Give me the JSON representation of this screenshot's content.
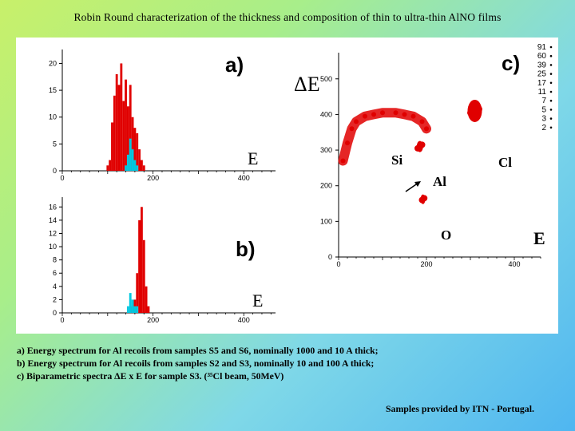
{
  "title": "Robin Round characterization of the thickness and composition of thin to ultra-thin AlNO films",
  "panels": {
    "a": {
      "label": "a)",
      "xaxis_label": "E",
      "yticks": [
        "0",
        "5",
        "10",
        "15",
        "20"
      ],
      "xticks": [
        "0",
        "200",
        "400"
      ]
    },
    "b": {
      "label": "b)",
      "xaxis_label": "E",
      "yticks": [
        "0",
        "2",
        "4",
        "6",
        "8",
        "10",
        "12",
        "14",
        "16"
      ],
      "xticks": [
        "0",
        "200",
        "400"
      ]
    },
    "c": {
      "label": "c)",
      "xaxis_label": "E",
      "yaxis_label": "ΔE",
      "yticks": [
        "0",
        "100",
        "200",
        "300",
        "400",
        "500"
      ],
      "xticks": [
        "0",
        "200",
        "400"
      ],
      "elements": [
        "Si",
        "Al",
        "Cl",
        "O"
      ],
      "scale": [
        "91",
        "60",
        "39",
        "25",
        "17",
        "11",
        "7",
        "5",
        "3",
        "2"
      ]
    }
  },
  "chart_data": [
    {
      "type": "bar",
      "panel": "a",
      "xlabel": "E",
      "ylabel": "",
      "xlim": [
        0,
        470
      ],
      "ylim": [
        0,
        22
      ],
      "series": [
        {
          "color": "#e00000",
          "x": [
            100,
            105,
            110,
            115,
            120,
            125,
            130,
            135,
            140,
            145,
            150,
            155,
            160,
            165,
            170,
            175,
            180
          ],
          "values": [
            1,
            2,
            9,
            14,
            18,
            16,
            20,
            13,
            17,
            12,
            16,
            10,
            8,
            7,
            4,
            2,
            1
          ]
        },
        {
          "color": "#00c8e0",
          "x": [
            140,
            145,
            150,
            155,
            160,
            165
          ],
          "values": [
            1,
            3,
            6,
            4,
            2,
            1
          ]
        }
      ]
    },
    {
      "type": "bar",
      "panel": "b",
      "xlabel": "E",
      "ylabel": "",
      "xlim": [
        0,
        470
      ],
      "ylim": [
        0,
        17
      ],
      "series": [
        {
          "color": "#e00000",
          "x": [
            155,
            160,
            165,
            170,
            175,
            180,
            185,
            190
          ],
          "values": [
            1,
            2,
            6,
            14,
            16,
            11,
            4,
            1
          ]
        },
        {
          "color": "#00c8e0",
          "x": [
            145,
            150,
            155,
            160,
            165
          ],
          "values": [
            1,
            3,
            2,
            1,
            1
          ]
        }
      ]
    },
    {
      "type": "scatter",
      "panel": "c",
      "xlabel": "E",
      "ylabel": "ΔE",
      "xlim": [
        0,
        460
      ],
      "ylim": [
        0,
        560
      ],
      "series": [
        {
          "name": "Si",
          "color": "#e00000",
          "x": [
            10,
            20,
            30,
            40,
            60,
            80,
            100,
            130,
            150,
            170,
            190,
            200
          ],
          "y": [
            270,
            320,
            360,
            380,
            395,
            400,
            405,
            405,
            400,
            395,
            380,
            360
          ]
        },
        {
          "name": "Al",
          "color": "#e00000",
          "x": [
            180,
            185,
            190
          ],
          "y": [
            305,
            310,
            315
          ]
        },
        {
          "name": "Cl",
          "color": "#e00000",
          "x": [
            300,
            310,
            320
          ],
          "y": [
            405,
            410,
            415
          ]
        },
        {
          "name": "O",
          "color": "#e00000",
          "x": [
            190,
            195
          ],
          "y": [
            160,
            165
          ]
        }
      ]
    }
  ],
  "caption": [
    "a) Energy spectrum for Al recoils from samples S5 and S6, nominally 1000 and 10 A thick;",
    "b) Energy spectrum for Al recoils from samples S2 and S3, nominally 10 and 100 A thick;",
    "c) Biparametric spectra ΔE x E for sample S3. (³⁵Cl beam, 50MeV)"
  ],
  "credit": "Samples provided by ITN - Portugal."
}
